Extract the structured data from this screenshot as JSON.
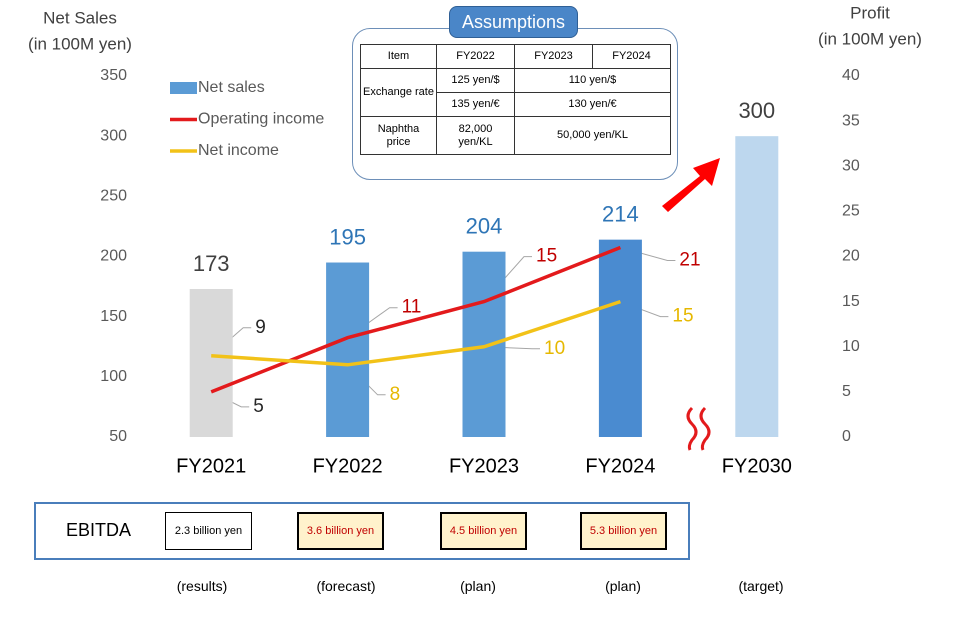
{
  "chart_data": {
    "type": "bar",
    "y_label": [
      "Net Sales",
      "(in 100M yen)"
    ],
    "y2_label": [
      "Profit",
      "(in 100M yen)"
    ],
    "categories": [
      "FY2021",
      "FY2022",
      "FY2023",
      "FY2024",
      "FY2030"
    ],
    "ylim": [
      50,
      350
    ],
    "yticks": [
      50,
      100,
      150,
      200,
      250,
      300,
      350
    ],
    "y2lim": [
      0,
      40
    ],
    "y2ticks": [
      0,
      5,
      10,
      15,
      20,
      25,
      30,
      35,
      40
    ],
    "legend": "upper left",
    "series": [
      {
        "name": "Net sales",
        "type": "bar",
        "color": "#5b9bd5",
        "colors": [
          "#d9d9d9",
          "#5b9bd5",
          "#5b9bd5",
          "#4a8bd0",
          "#bdd7ee"
        ],
        "label_colors": [
          "#404040",
          "#2e75b6",
          "#2e75b6",
          "#2e75b6",
          "#404040"
        ],
        "values": [
          173,
          195,
          204,
          214,
          300
        ]
      },
      {
        "name": "Operating income",
        "type": "line",
        "axis": "y2",
        "color": "#e31a1c",
        "label_colors": [
          "#262626",
          "#c00000",
          "#c00000",
          "#c00000",
          null
        ],
        "values": [
          5,
          11,
          15,
          21,
          null
        ]
      },
      {
        "name": "Net income",
        "type": "line",
        "axis": "y2",
        "color": "#f2c218",
        "label_colors": [
          "#262626",
          "#e6b800",
          "#e6b800",
          "#e6b800",
          null
        ],
        "values": [
          9,
          8,
          10,
          15,
          null
        ]
      }
    ]
  },
  "assumptions": {
    "title": "Assumptions",
    "header": [
      "Item",
      "FY2022",
      "FY2023",
      "FY2024"
    ],
    "rows": [
      [
        "Exchange rate",
        "125 yen/$",
        "110 yen/$"
      ],
      [
        "135 yen/€",
        "130 yen/€"
      ],
      [
        "Naphtha price",
        "82,000 yen/KL",
        "50,000 yen/KL"
      ]
    ]
  },
  "ebitda": {
    "label": "EBITDA",
    "values": [
      "2.3 billion yen",
      "3.6 billion yen",
      "4.5 billion yen",
      "5.3 billion yen"
    ]
  },
  "notes": [
    "(results)",
    "(forecast)",
    "(plan)",
    "(plan)",
    "(target)"
  ]
}
